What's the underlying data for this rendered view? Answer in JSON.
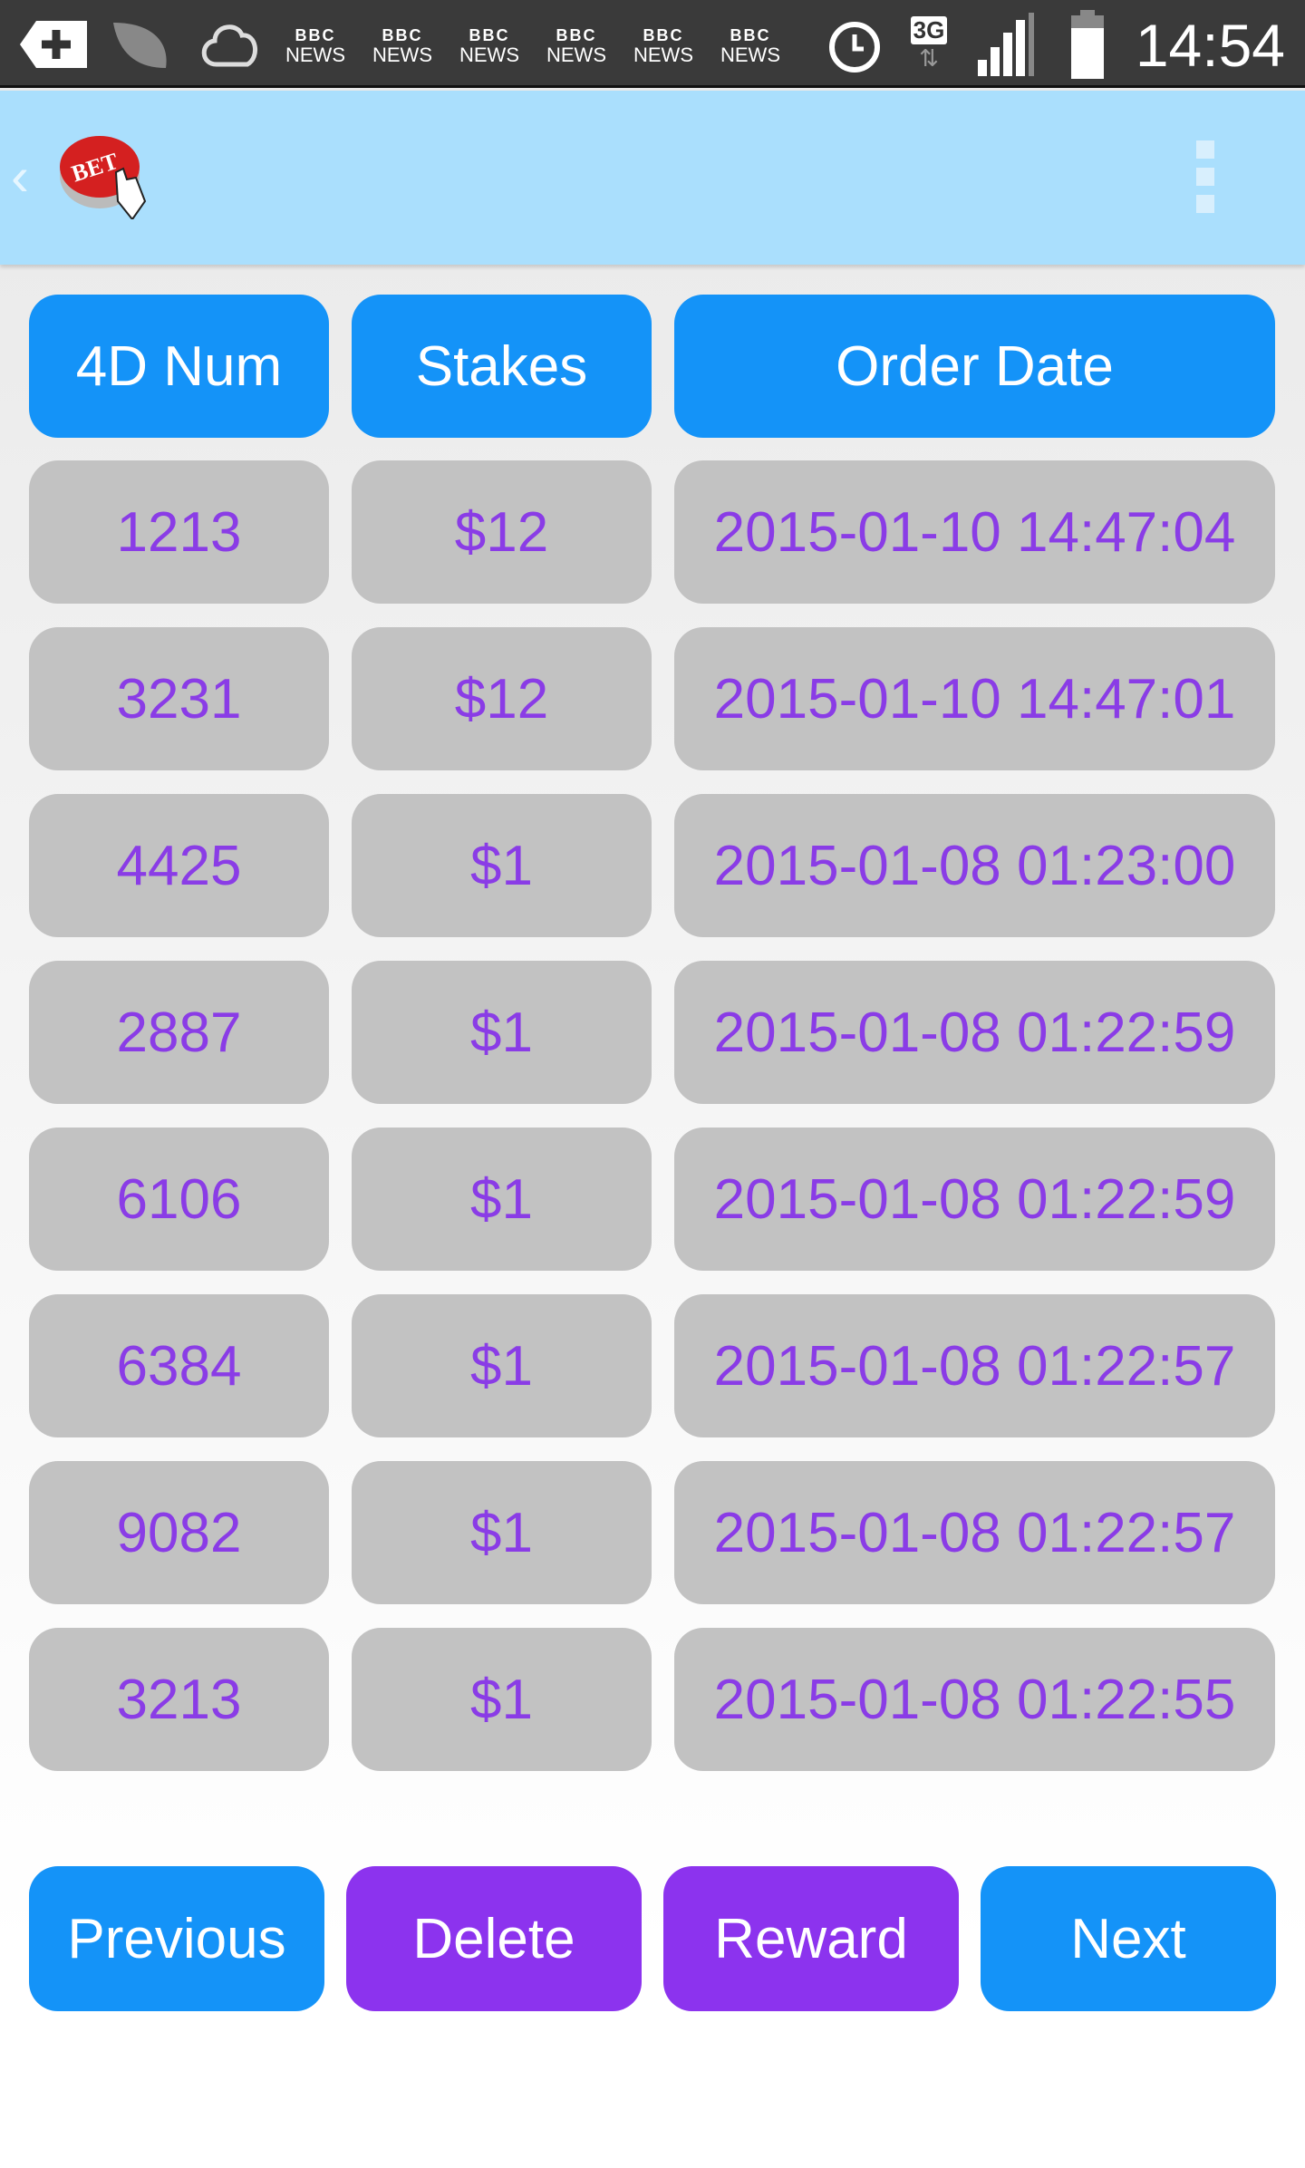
{
  "status_bar": {
    "time": "14:54",
    "network": "3G",
    "news_label_top": "BBC",
    "news_label_bottom": "NEWS"
  },
  "app_bar": {
    "logo_text": "BET"
  },
  "table": {
    "headers": [
      "4D Num",
      "Stakes",
      "Order Date"
    ],
    "rows": [
      [
        "1213",
        "$12",
        "2015-01-10 14:47:04"
      ],
      [
        "3231",
        "$12",
        "2015-01-10 14:47:01"
      ],
      [
        "4425",
        "$1",
        "2015-01-08 01:23:00"
      ],
      [
        "2887",
        "$1",
        "2015-01-08 01:22:59"
      ],
      [
        "6106",
        "$1",
        "2015-01-08 01:22:59"
      ],
      [
        "6384",
        "$1",
        "2015-01-08 01:22:57"
      ],
      [
        "9082",
        "$1",
        "2015-01-08 01:22:57"
      ],
      [
        "3213",
        "$1",
        "2015-01-08 01:22:55"
      ]
    ]
  },
  "buttons": {
    "previous": "Previous",
    "delete": "Delete",
    "reward": "Reward",
    "next": "Next"
  },
  "colors": {
    "primary": "#1493f8",
    "accent": "#8c33ee",
    "row_bg": "#c2c2c2",
    "row_text": "#8a3ce6",
    "app_bar": "#aadffd"
  }
}
